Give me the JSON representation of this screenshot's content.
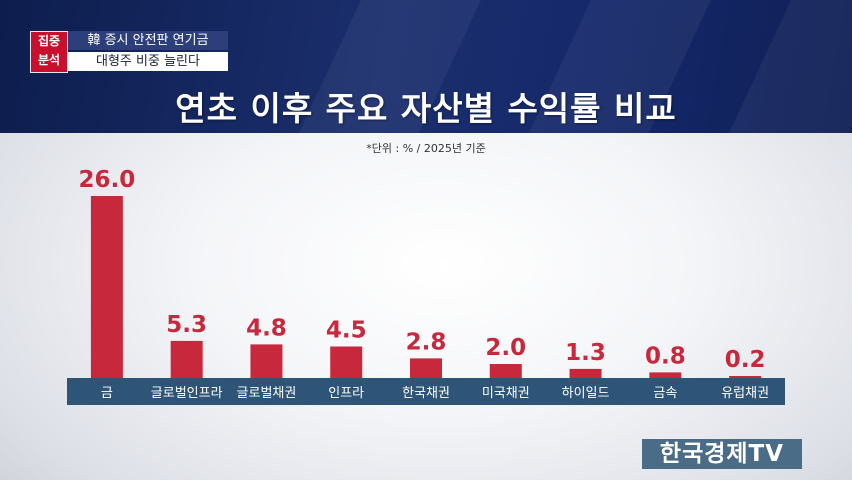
{
  "header": {
    "badge": [
      "집중",
      "분석"
    ],
    "subtitle_1": "韓 증시 안전판 연기금",
    "subtitle_2": "대형주 비중 늘린다"
  },
  "title": "연초 이후 주요 자산별 수익률 비교",
  "unit_note": "*단위 : % / 2025년 기준",
  "logo": "한국경제TV",
  "colors": {
    "bar": "#c8283c",
    "label": "#c8283c",
    "axis_band": "#2e5577",
    "header_bg": "#15286a",
    "badge": "#c8102e"
  },
  "chart_data": {
    "type": "bar",
    "title": "연초 이후 주요 자산별 수익률 비교",
    "unit": "*단위 : % / 2025년 기준",
    "categories": [
      "금",
      "글로벌인프라",
      "글로벌채권",
      "인프라",
      "한국채권",
      "미국채권",
      "하이일드",
      "금속",
      "유럽채권"
    ],
    "values": [
      26.0,
      5.3,
      4.8,
      4.5,
      2.8,
      2.0,
      1.3,
      0.8,
      0.2
    ],
    "value_labels": [
      "26.0",
      "5.3",
      "4.8",
      "4.5",
      "2.8",
      "2.0",
      "1.3",
      "0.8",
      "0.2"
    ],
    "ylim": [
      0,
      26.0
    ],
    "grid": false,
    "legend": "none"
  }
}
